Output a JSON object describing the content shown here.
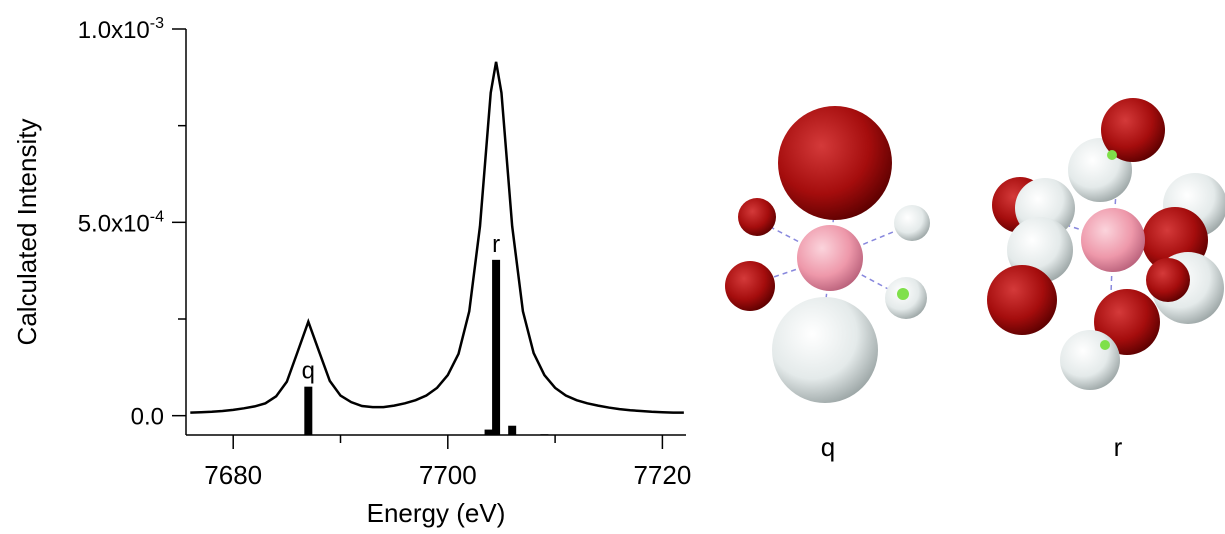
{
  "chart_data": {
    "type": "line",
    "xlabel": "Energy (eV)",
    "ylabel": "Calculated Intensity",
    "xlim": [
      7675.6,
      7722.2
    ],
    "ylim": [
      -5e-05,
      0.001
    ],
    "xticks": [
      7680,
      7700,
      7720
    ],
    "xminorticks": [
      7690,
      7710
    ],
    "yticks": [
      {
        "value": 0,
        "label": "0.0"
      },
      {
        "value": 0.0005,
        "label": "5.0x10",
        "exponent": "-4"
      },
      {
        "value": 0.001,
        "label": "1.0x10",
        "exponent": "-3"
      }
    ],
    "yminorticks": [
      0.00025,
      0.00075
    ],
    "series": [
      {
        "type": "line",
        "color": "#000000",
        "x": [
          7676,
          7677,
          7678,
          7679,
          7680,
          7681,
          7682,
          7683,
          7684,
          7685,
          7686,
          7687,
          7688,
          7689,
          7690,
          7691,
          7692,
          7693,
          7694,
          7695,
          7696,
          7697,
          7698,
          7699,
          7700,
          7701,
          7702,
          7703,
          7704,
          7704.5,
          7705,
          7706,
          7707,
          7708,
          7709,
          7710,
          7711,
          7712,
          7713,
          7714,
          7715,
          7716,
          7717,
          7718,
          7719,
          7720,
          7721,
          7722
        ],
        "values": [
          8e-06,
          9e-06,
          1e-05,
          1.2e-05,
          1.5e-05,
          1.9e-05,
          2.4e-05,
          3.2e-05,
          5e-05,
          8.8e-05,
          0.000165,
          0.000243,
          0.000166,
          9e-05,
          5.2e-05,
          3.5e-05,
          2.5e-05,
          2.2e-05,
          2.2e-05,
          2.6e-05,
          3.2e-05,
          4e-05,
          5.2e-05,
          7.2e-05,
          0.000105,
          0.00016,
          0.00027,
          0.00049,
          0.000835,
          0.000915,
          0.000835,
          0.00049,
          0.00027,
          0.000162,
          0.000105,
          7.2e-05,
          5.2e-05,
          4e-05,
          3.2e-05,
          2.6e-05,
          2.1e-05,
          1.7e-05,
          1.4e-05,
          1.2e-05,
          1e-05,
          9e-06,
          8e-06,
          8e-06
        ]
      },
      {
        "type": "bar",
        "color": "#000000",
        "x": [
          7687,
          7703.8,
          7704.5,
          7706,
          7709
        ],
        "values": [
          7.5e-05,
          -3.6e-05,
          0.000403,
          -2.6e-05,
          -4.8e-05
        ],
        "labels": [
          "q",
          null,
          "r",
          null,
          null
        ]
      }
    ]
  },
  "illustrations": [
    {
      "label": "q"
    },
    {
      "label": "r"
    }
  ]
}
